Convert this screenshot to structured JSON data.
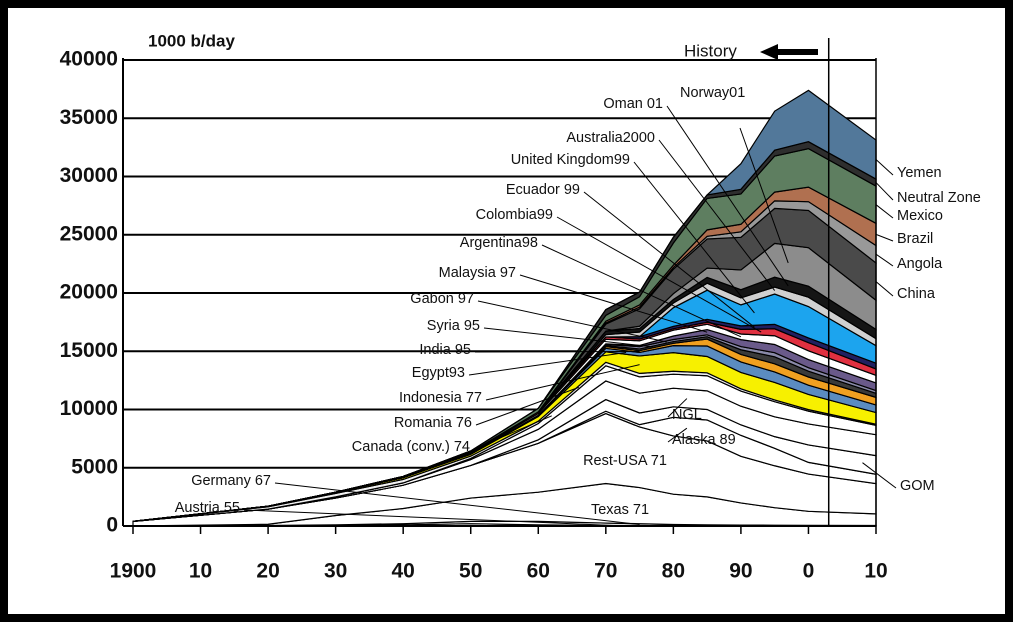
{
  "chart_data": {
    "type": "stacked_area",
    "y_label": "1000 b/day",
    "history_label": "History",
    "history_year": 2003,
    "xlim": [
      1900,
      2010
    ],
    "xticks": [
      1900,
      {
        "value": 1910,
        "label": "10"
      },
      {
        "value": 1920,
        "label": "20"
      },
      {
        "value": 1930,
        "label": "30"
      },
      {
        "value": 1940,
        "label": "40"
      },
      {
        "value": 1950,
        "label": "50"
      },
      {
        "value": 1960,
        "label": "60"
      },
      {
        "value": 1970,
        "label": "70"
      },
      {
        "value": 1980,
        "label": "80"
      },
      {
        "value": 1990,
        "label": "90"
      },
      {
        "value": 2000,
        "label": "0"
      },
      {
        "value": 2010,
        "label": "10"
      }
    ],
    "ylim": [
      0,
      40000
    ],
    "yticks": [
      0,
      5000,
      10000,
      15000,
      20000,
      25000,
      30000,
      35000,
      40000
    ],
    "grid": true,
    "x": [
      1900,
      1920,
      1930,
      1940,
      1950,
      1960,
      1970,
      1975,
      1980,
      1985,
      1990,
      1995,
      2000,
      2010
    ],
    "series": [
      {
        "name": "Austria 55",
        "color": "#ffffff",
        "values": [
          0,
          50,
          50,
          100,
          200,
          100,
          50,
          50,
          30,
          20,
          20,
          20,
          20,
          10
        ]
      },
      {
        "name": "Germany 67",
        "color": "#ffffff",
        "values": [
          0,
          0,
          50,
          100,
          200,
          300,
          200,
          150,
          100,
          80,
          60,
          50,
          40,
          30
        ]
      },
      {
        "name": "Texas 71",
        "color": "#ffffff",
        "values": [
          0,
          100,
          800,
          1300,
          2000,
          2500,
          3400,
          3100,
          2600,
          2400,
          1900,
          1500,
          1200,
          1000
        ]
      },
      {
        "name": "Rest-USA 71",
        "color": "#ffffff",
        "values": [
          400,
          1300,
          1500,
          2000,
          2800,
          4200,
          6000,
          5200,
          5000,
          4800,
          4000,
          3600,
          3200,
          2600
        ]
      },
      {
        "name": "Alaska 89",
        "color": "#ffffff",
        "values": [
          0,
          0,
          0,
          0,
          0,
          0,
          200,
          200,
          1600,
          1800,
          1800,
          1500,
          1000,
          800
        ]
      },
      {
        "name": "GOM",
        "color": "#ffffff",
        "values": [
          0,
          0,
          0,
          0,
          0,
          300,
          1000,
          1000,
          900,
          900,
          900,
          1000,
          1500,
          1600
        ]
      },
      {
        "name": "NGL",
        "color": "#ffffff",
        "values": [
          0,
          0,
          100,
          200,
          500,
          900,
          1600,
          1700,
          1600,
          1600,
          1600,
          1700,
          1800,
          1800
        ]
      },
      {
        "name": "Canada (conv.) 74",
        "color": "#ffffff",
        "values": [
          0,
          0,
          0,
          0,
          100,
          500,
          1300,
          1400,
          1200,
          1300,
          1300,
          1300,
          1100,
          800
        ]
      },
      {
        "name": "Romania 76",
        "color": "#f2f2f2",
        "values": [
          0,
          200,
          300,
          300,
          200,
          200,
          300,
          300,
          250,
          250,
          200,
          150,
          130,
          100
        ]
      },
      {
        "name": "Indonesia 77",
        "color": "#f7f000",
        "values": [
          0,
          50,
          100,
          150,
          150,
          400,
          900,
          1500,
          1600,
          1400,
          1400,
          1500,
          1300,
          1000
        ]
      },
      {
        "name": "Egypt93",
        "color": "#5b8cc0",
        "values": [
          0,
          0,
          0,
          0,
          50,
          100,
          300,
          300,
          600,
          900,
          900,
          900,
          800,
          650
        ]
      },
      {
        "name": "India 95",
        "color": "#f0a020",
        "values": [
          0,
          0,
          0,
          0,
          0,
          0,
          150,
          150,
          200,
          600,
          650,
          700,
          700,
          650
        ]
      },
      {
        "name": "Syria 95",
        "color": "#3a3a3a",
        "values": [
          0,
          0,
          0,
          0,
          0,
          0,
          80,
          150,
          150,
          200,
          400,
          600,
          500,
          350
        ]
      },
      {
        "name": "Gabon 97",
        "color": "#8a8aa8",
        "values": [
          0,
          0,
          0,
          0,
          0,
          0,
          100,
          200,
          180,
          160,
          270,
          360,
          300,
          240
        ]
      },
      {
        "name": "Malaysia 97",
        "color": "#6a5a8a",
        "values": [
          0,
          0,
          0,
          0,
          0,
          0,
          50,
          100,
          300,
          450,
          600,
          700,
          700,
          650
        ]
      },
      {
        "name": "Argentina98",
        "color": "#ffffff",
        "values": [
          0,
          0,
          0,
          50,
          70,
          150,
          400,
          400,
          500,
          460,
          480,
          750,
          750,
          650
        ]
      },
      {
        "name": "Colombia99",
        "color": "#e03040",
        "values": [
          0,
          0,
          0,
          50,
          70,
          150,
          200,
          150,
          130,
          170,
          400,
          600,
          700,
          550
        ]
      },
      {
        "name": "Ecuador 99",
        "color": "#202060",
        "values": [
          0,
          0,
          0,
          0,
          0,
          0,
          0,
          200,
          200,
          250,
          300,
          380,
          400,
          500
        ]
      },
      {
        "name": "United Kingdom99",
        "color": "#1ca4ee",
        "values": [
          0,
          0,
          0,
          0,
          0,
          0,
          0,
          0,
          1600,
          2500,
          1800,
          2600,
          2700,
          1500
        ]
      },
      {
        "name": "Australia2000",
        "color": "#d0d0d0",
        "values": [
          0,
          0,
          0,
          0,
          0,
          0,
          200,
          400,
          400,
          600,
          600,
          600,
          800,
          600
        ]
      },
      {
        "name": "Oman 01",
        "color": "#151515",
        "values": [
          0,
          0,
          0,
          0,
          0,
          0,
          300,
          300,
          300,
          500,
          700,
          850,
          950,
          800
        ]
      },
      {
        "name": "Norway01",
        "color": "#8c8c8c",
        "values": [
          0,
          0,
          0,
          0,
          0,
          0,
          0,
          200,
          500,
          800,
          1700,
          2900,
          3300,
          2500
        ]
      },
      {
        "name": "China",
        "color": "#4a4a4a",
        "values": [
          0,
          0,
          0,
          0,
          0,
          0,
          600,
          1500,
          2100,
          2500,
          2800,
          3000,
          3200,
          3200
        ]
      },
      {
        "name": "Angola",
        "color": "#999999",
        "values": [
          0,
          0,
          0,
          0,
          0,
          0,
          100,
          150,
          150,
          230,
          470,
          650,
          750,
          1500
        ]
      },
      {
        "name": "Brazil",
        "color": "#b07050",
        "values": [
          0,
          0,
          0,
          0,
          0,
          0,
          150,
          180,
          200,
          550,
          650,
          750,
          1250,
          1900
        ]
      },
      {
        "name": "Mexico",
        "color": "#5e7e60",
        "values": [
          0,
          0,
          0,
          0,
          100,
          300,
          500,
          700,
          1900,
          2700,
          2600,
          3100,
          3300,
          3200
        ]
      },
      {
        "name": "Neutral Zone",
        "color": "#2e2e2e",
        "values": [
          0,
          0,
          0,
          0,
          0,
          0,
          500,
          400,
          500,
          300,
          400,
          500,
          600,
          600
        ]
      },
      {
        "name": "Yemen",
        "color": "#52789a",
        "values": [
          0,
          0,
          0,
          0,
          0,
          0,
          0,
          0,
          0,
          0,
          2200,
          3350,
          4400,
          3350
        ]
      }
    ]
  }
}
